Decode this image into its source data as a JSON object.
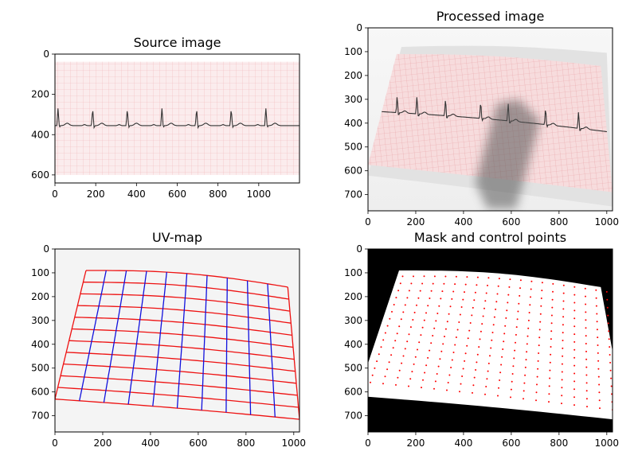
{
  "colors": {
    "grid_paper": "#f2b6b8",
    "grid_paper_bg": "#fbeced",
    "ecg": "#333333",
    "uv_h": "#ee1111",
    "uv_v": "#1111dd",
    "uv_bg": "#f4f4f4",
    "mask_bg": "#000000",
    "mask_fg": "#ffffff",
    "points": "#ff0000",
    "shadow": "#555555"
  },
  "chart_data": [
    {
      "type": "image",
      "title": "Source image",
      "xlim": [
        0,
        1200
      ],
      "ylim": [
        640,
        0
      ],
      "xticks": [
        "0",
        "200",
        "400",
        "600",
        "800",
        "1000"
      ],
      "yticks": [
        "0",
        "200",
        "400",
        "600"
      ],
      "paper": {
        "x0": 0,
        "x1": 1200,
        "y0": 38,
        "y1": 600
      },
      "ecg_baseline": 355,
      "ecg_peak": 270,
      "r_peaks_x": [
        15,
        185,
        355,
        525,
        695,
        865,
        1035
      ]
    },
    {
      "type": "image",
      "title": "Processed image",
      "xlim": [
        0,
        1024
      ],
      "ylim": [
        768,
        0
      ],
      "xticks": [
        "0",
        "200",
        "400",
        "600",
        "800",
        "1000"
      ],
      "yticks": [
        "0",
        "100",
        "200",
        "300",
        "400",
        "500",
        "600",
        "700"
      ],
      "r_peaks_x": [
        70,
        160,
        290,
        450,
        575,
        745,
        895
      ]
    },
    {
      "type": "uvmap",
      "title": "UV-map",
      "xlim": [
        0,
        1024
      ],
      "ylim": [
        768,
        0
      ],
      "xticks": [
        "0",
        "200",
        "400",
        "600",
        "800",
        "1000"
      ],
      "yticks": [
        "0",
        "100",
        "200",
        "300",
        "400",
        "500",
        "600",
        "700"
      ],
      "corners": {
        "tl": [
          130,
          90
        ],
        "tr": [
          975,
          160
        ],
        "bl": [
          0,
          630
        ],
        "br": [
          1024,
          715
        ]
      },
      "h_lines": 12,
      "v_lines": 11
    },
    {
      "type": "mask",
      "title": "Mask and control points",
      "xlim": [
        0,
        1024
      ],
      "ylim": [
        768,
        0
      ],
      "xticks": [
        "0",
        "200",
        "400",
        "600",
        "800",
        "1000"
      ],
      "yticks": [
        "0",
        "100",
        "200",
        "300",
        "400",
        "500",
        "600",
        "700"
      ],
      "point_rows": 16,
      "point_cols": 20
    }
  ]
}
